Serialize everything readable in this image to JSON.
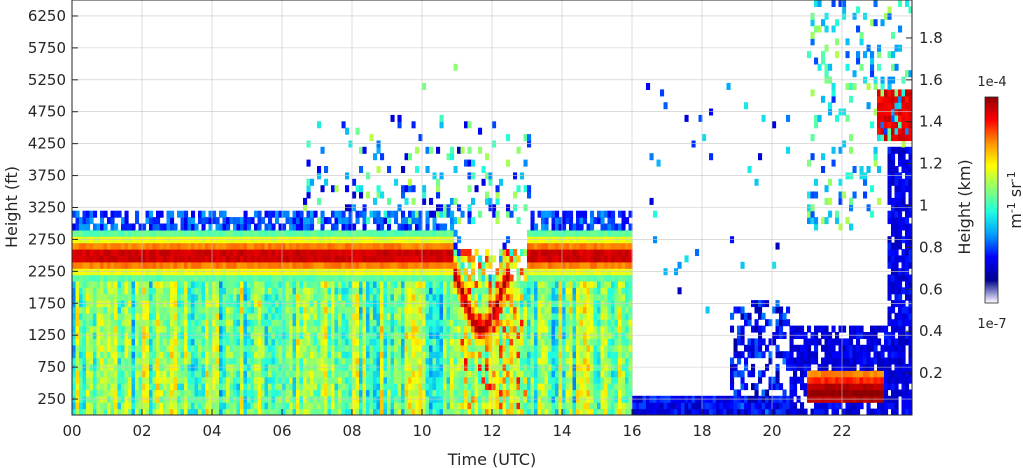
{
  "chart_data": {
    "type": "heatmap",
    "title": "",
    "xlabel": "Time (UTC)",
    "ylabel_left": "Height (ft)",
    "ylabel_right": "Height (km)",
    "colorbar_label": "m-1 sr-1",
    "colorbar_ticks": {
      "max": "1e-4",
      "min": "1e-7"
    },
    "colorbar_scale": "log",
    "colormap": [
      "#ffffff",
      "#00008f",
      "#0000ff",
      "#00a0ff",
      "#1fffdf",
      "#8fff70",
      "#ffff00",
      "#ff9000",
      "#ff0000",
      "#8f0000"
    ],
    "xlim": [
      0,
      24
    ],
    "ylim_ft": [
      0,
      6500
    ],
    "grid": true,
    "x_ticks": [
      "00",
      "02",
      "04",
      "06",
      "08",
      "10",
      "12",
      "14",
      "16",
      "18",
      "20",
      "22"
    ],
    "y_ticks_left": [
      "250",
      "750",
      "1250",
      "1750",
      "2250",
      "2750",
      "3250",
      "3750",
      "4250",
      "4750",
      "5250",
      "5750",
      "6250"
    ],
    "y_ticks_right": [
      "0.2",
      "0.4",
      "0.6",
      "0.8",
      "1",
      "1.2",
      "1.4",
      "1.6",
      "1.8"
    ],
    "features": [
      {
        "name": "Boundary-layer aerosol",
        "t_start": 0,
        "t_end": 16,
        "base_ft": 0,
        "top_ft": 2200,
        "level": "mid"
      },
      {
        "name": "Cloud layer",
        "t_start": 0,
        "t_end": 16,
        "base_ft": 2100,
        "top_ft": 2900,
        "level": "max"
      },
      {
        "name": "Near-surface layer",
        "t_start": 21,
        "t_end": 23.2,
        "base_ft": 150,
        "top_ft": 700,
        "level": "max"
      },
      {
        "name": "Elevated cloud",
        "t_start": 23,
        "t_end": 24,
        "base_ft": 4200,
        "top_ft": 5100,
        "level": "high"
      }
    ]
  }
}
